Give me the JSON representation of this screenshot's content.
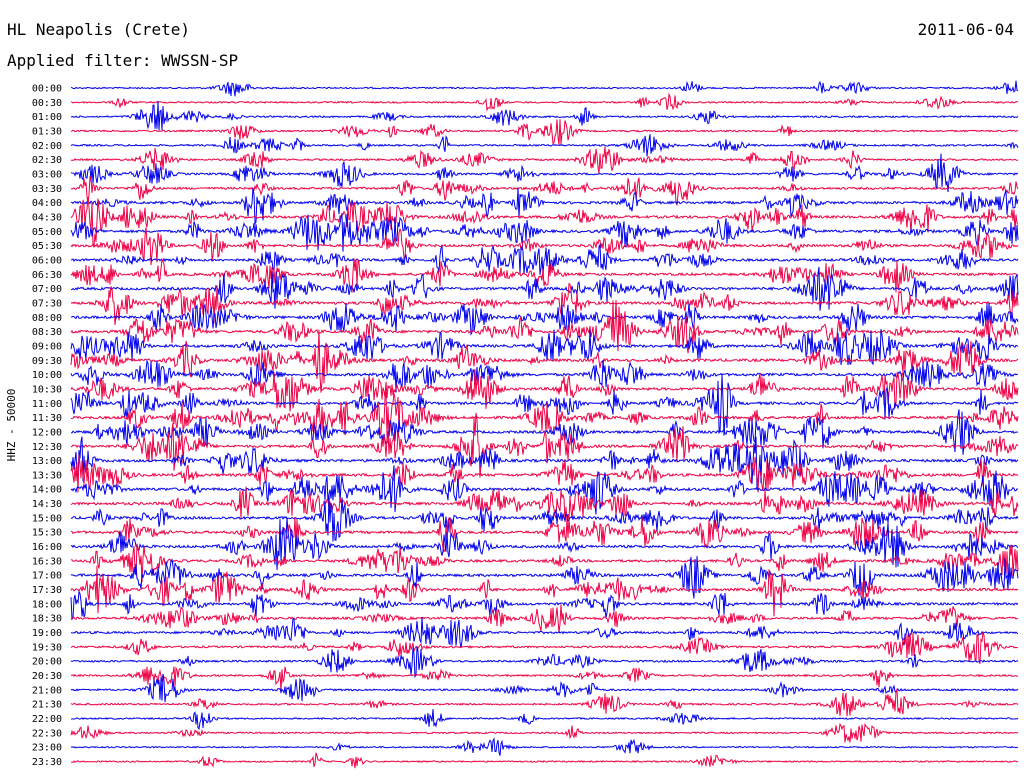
{
  "header": {
    "station": "HL Neapolis (Crete)",
    "date": "2011-06-04",
    "filter": "Applied filter: WWSSN-SP"
  },
  "chart_data": {
    "type": "line",
    "title": "HL Neapolis (Crete)",
    "ylabel": "HHZ - 50000",
    "row_labels": [
      "00:00",
      "00:30",
      "01:00",
      "01:30",
      "02:00",
      "02:30",
      "03:00",
      "03:30",
      "04:00",
      "04:30",
      "05:00",
      "05:30",
      "06:00",
      "06:30",
      "07:00",
      "07:30",
      "08:00",
      "08:30",
      "09:00",
      "09:30",
      "10:00",
      "10:30",
      "11:00",
      "11:30",
      "12:00",
      "12:30",
      "13:00",
      "13:30",
      "14:00",
      "14:30",
      "15:00",
      "15:30",
      "16:00",
      "16:30",
      "17:00",
      "17:30",
      "18:00",
      "18:30",
      "19:00",
      "19:30",
      "20:00",
      "20:30",
      "21:00",
      "21:30",
      "22:00",
      "22:30",
      "23:00",
      "23:30"
    ],
    "activity_level": [
      0.15,
      0.2,
      0.25,
      0.25,
      0.3,
      0.35,
      0.45,
      0.55,
      0.75,
      0.8,
      0.75,
      0.7,
      0.7,
      0.75,
      0.8,
      0.85,
      0.85,
      0.85,
      0.85,
      0.9,
      0.85,
      0.85,
      0.8,
      0.8,
      0.8,
      0.8,
      0.85,
      0.85,
      0.9,
      0.85,
      0.85,
      0.8,
      0.8,
      0.75,
      0.8,
      0.8,
      0.7,
      0.65,
      0.55,
      0.45,
      0.4,
      0.35,
      0.35,
      0.3,
      0.15,
      0.15,
      0.1,
      0.1
    ],
    "series_colors": [
      "#0000ee",
      "#ee0044"
    ],
    "grid": false
  }
}
